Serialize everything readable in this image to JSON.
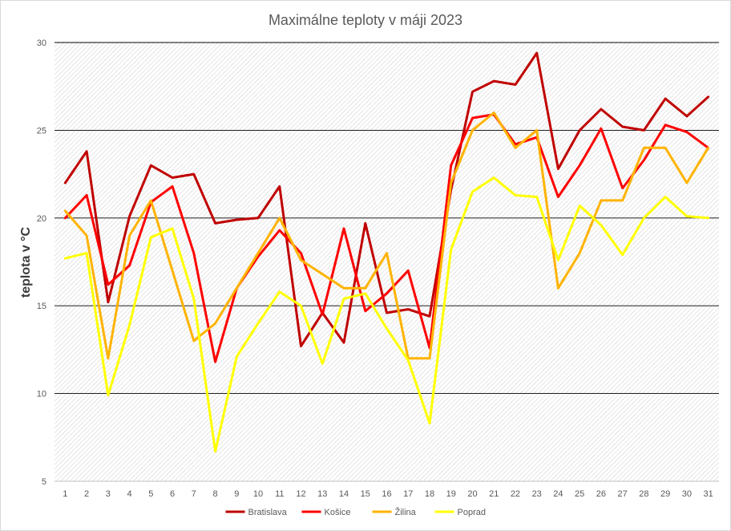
{
  "chart_data": {
    "type": "line",
    "title": "Maximálne teploty v máji 2023",
    "xlabel": "",
    "ylabel": "teplota v °C",
    "ylim": [
      5,
      30
    ],
    "yticks": [
      "5",
      "10",
      "15",
      "20",
      "25",
      "30"
    ],
    "grid": true,
    "plot_background": "diagonal hatch",
    "legend_position": "bottom",
    "categories": [
      "1",
      "2",
      "3",
      "4",
      "5",
      "6",
      "7",
      "8",
      "9",
      "10",
      "11",
      "12",
      "13",
      "14",
      "15",
      "16",
      "17",
      "18",
      "19",
      "20",
      "21",
      "22",
      "23",
      "24",
      "25",
      "26",
      "27",
      "28",
      "29",
      "30",
      "31"
    ],
    "series": [
      {
        "name": "Bratislava",
        "color": "#C00000",
        "values": [
          22.0,
          23.8,
          15.2,
          20.1,
          23.0,
          22.3,
          22.5,
          19.7,
          19.9,
          20.0,
          21.8,
          12.7,
          14.6,
          12.9,
          19.7,
          14.6,
          14.8,
          14.4,
          21.6,
          27.2,
          27.8,
          27.6,
          29.4,
          22.8,
          25.0,
          26.2,
          25.2,
          25.0,
          26.8,
          25.8,
          26.9
        ]
      },
      {
        "name": "Košice",
        "color": "#FF0000",
        "values": [
          20.0,
          21.3,
          16.2,
          17.3,
          20.9,
          21.8,
          18.0,
          11.8,
          16.0,
          17.8,
          19.3,
          18.0,
          14.5,
          19.4,
          14.7,
          15.7,
          17.0,
          12.6,
          23.0,
          25.7,
          25.9,
          24.2,
          24.6,
          21.2,
          23.0,
          25.1,
          21.7,
          23.3,
          25.3,
          24.9,
          24.0
        ]
      },
      {
        "name": "Žilina",
        "color": "#FFB300",
        "values": [
          20.4,
          19.0,
          12.0,
          19.0,
          21.0,
          17.0,
          13.0,
          14.0,
          16.0,
          18.0,
          20.0,
          17.6,
          16.8,
          16.0,
          16.0,
          18.0,
          12.0,
          12.0,
          22.0,
          25.0,
          26.0,
          24.0,
          25.0,
          16.0,
          18.0,
          21.0,
          21.0,
          24.0,
          24.0,
          22.0,
          24.0
        ]
      },
      {
        "name": "Poprad",
        "color": "#FFFF00",
        "values": [
          17.7,
          18.0,
          9.9,
          13.9,
          18.9,
          19.4,
          15.4,
          6.7,
          12.1,
          14.0,
          15.8,
          15.0,
          11.7,
          15.4,
          15.7,
          13.7,
          11.9,
          8.3,
          18.2,
          21.5,
          22.3,
          21.3,
          21.2,
          17.6,
          20.7,
          19.6,
          17.9,
          20.0,
          21.2,
          20.1,
          20.0
        ]
      }
    ]
  }
}
